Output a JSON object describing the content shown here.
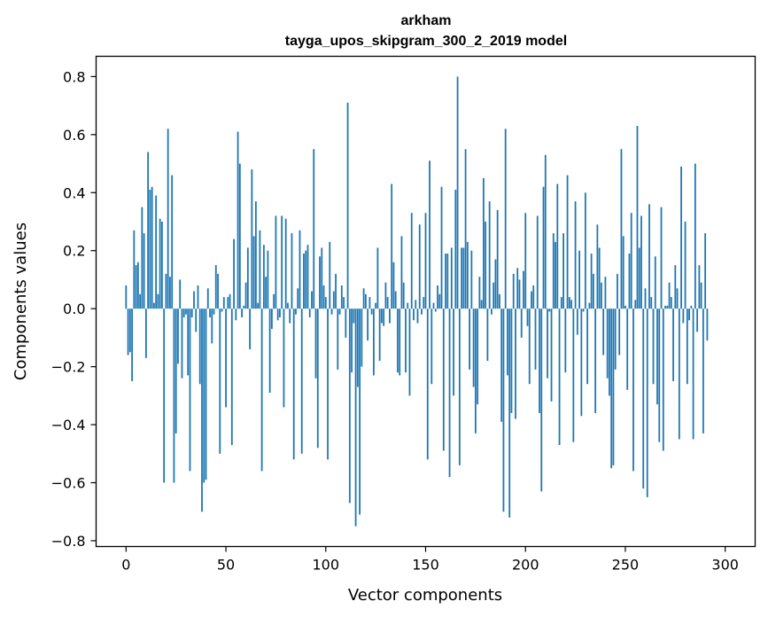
{
  "chart_data": {
    "type": "bar",
    "title": "arkham",
    "subtitle": "tayga_upos_skipgram_300_2_2019 model",
    "xlabel": "Vector components",
    "ylabel": "Components values",
    "xlim": [
      -15,
      315
    ],
    "ylim": [
      -0.82,
      0.87
    ],
    "x_ticks": [
      0,
      50,
      100,
      150,
      200,
      250,
      300
    ],
    "x_tick_labels": [
      "0",
      "50",
      "100",
      "150",
      "200",
      "250",
      "300"
    ],
    "y_ticks": [
      -0.8,
      -0.6,
      -0.4,
      -0.2,
      0.0,
      0.2,
      0.4,
      0.6,
      0.8
    ],
    "y_tick_labels": [
      "−0.8",
      "−0.6",
      "−0.4",
      "−0.2",
      "0.0",
      "0.2",
      "0.4",
      "0.6",
      "0.8"
    ],
    "grid": false,
    "bar_color": "#1f77b4",
    "values": [
      0.08,
      -0.16,
      -0.15,
      -0.25,
      0.27,
      0.15,
      0.16,
      0.05,
      0.35,
      0.26,
      -0.17,
      0.54,
      0.41,
      0.42,
      0.02,
      0.39,
      0.05,
      0.31,
      0.3,
      -0.6,
      0.12,
      0.62,
      0.11,
      0.46,
      -0.6,
      -0.43,
      -0.19,
      0.1,
      -0.24,
      -0.03,
      -0.02,
      -0.23,
      -0.56,
      -0.03,
      0.06,
      -0.08,
      0.08,
      -0.26,
      -0.7,
      -0.6,
      -0.59,
      0.07,
      -0.03,
      -0.12,
      -0.02,
      0.15,
      0.12,
      -0.5,
      -0.01,
      0.04,
      -0.34,
      0.04,
      0.05,
      -0.47,
      0.24,
      -0.04,
      0.61,
      0.5,
      -0.03,
      0.01,
      0.09,
      0.21,
      -0.14,
      0.48,
      0.25,
      0.37,
      0.02,
      0.27,
      -0.56,
      0.22,
      0.11,
      0.2,
      -0.29,
      -0.07,
      0.05,
      0.32,
      -0.04,
      -0.03,
      0.32,
      -0.34,
      0.31,
      0.02,
      -0.05,
      0.26,
      -0.52,
      -0.02,
      0.07,
      0.27,
      -0.5,
      0.19,
      0.2,
      0.22,
      -0.03,
      0.06,
      0.55,
      -0.24,
      -0.48,
      0.18,
      0.21,
      0.08,
      0.04,
      -0.52,
      0.23,
      -0.02,
      0.06,
      0.12,
      -0.21,
      -0.02,
      0.08,
      0.04,
      -0.1,
      0.71,
      -0.67,
      -0.22,
      -0.05,
      -0.75,
      -0.27,
      -0.71,
      -0.2,
      0.07,
      0.05,
      -0.11,
      0.04,
      -0.02,
      -0.23,
      0.02,
      0.21,
      -0.18,
      -0.05,
      -0.06,
      0.09,
      0.04,
      -0.05,
      0.43,
      0.16,
      0.06,
      -0.22,
      -0.23,
      0.25,
      0.09,
      -0.22,
      0.02,
      -0.3,
      0.33,
      -0.04,
      0.03,
      -0.05,
      0.29,
      -0.02,
      0.04,
      0.33,
      -0.52,
      0.51,
      -0.26,
      0.02,
      -0.01,
      0.08,
      0.05,
      0.42,
      -0.49,
      0.19,
      0.19,
      -0.58,
      0.21,
      -0.3,
      0.41,
      0.8,
      -0.54,
      0.21,
      0.21,
      0.55,
      0.23,
      -0.21,
      0.2,
      -0.27,
      -0.43,
      -0.33,
      0.11,
      0.03,
      0.45,
      0.3,
      -0.18,
      0.37,
      -0.02,
      0.09,
      0.17,
      0.34,
      0.05,
      -0.39,
      -0.7,
      0.62,
      -0.23,
      -0.72,
      -0.36,
      0.12,
      -0.38,
      0.14,
      0.1,
      -0.1,
      0.13,
      0.33,
      -0.06,
      -0.26,
      0.06,
      0.08,
      -0.21,
      0.32,
      -0.36,
      -0.63,
      0.42,
      0.53,
      -0.24,
      -0.01,
      -0.32,
      0.26,
      0.23,
      0.43,
      -0.47,
      0.04,
      0.26,
      -0.22,
      0.46,
      0.04,
      0.03,
      -0.46,
      0.37,
      -0.09,
      0.2,
      -0.37,
      -0.01,
      0.4,
      -0.26,
      0.02,
      0.19,
      0.12,
      -0.36,
      0.29,
      0.21,
      0.09,
      -0.16,
      0.11,
      -0.24,
      -0.3,
      -0.55,
      -0.54,
      -0.21,
      0.12,
      -0.16,
      0.55,
      0.25,
      0.01,
      -0.28,
      0.19,
      0.33,
      -0.56,
      0.03,
      0.63,
      0.21,
      0.32,
      -0.62,
      0.07,
      -0.65,
      0.36,
      0.04,
      -0.26,
      0.18,
      -0.33,
      -0.46,
      0.35,
      -0.49,
      0.01,
      0.01,
      0.09,
      0.04,
      -0.25,
      0.15,
      0.07,
      -0.45,
      0.49,
      -0.05,
      0.3,
      -0.26,
      -0.04,
      0.01,
      -0.45,
      0.5,
      -0.08,
      0.15,
      0.09,
      -0.43,
      0.26,
      -0.11
    ]
  }
}
